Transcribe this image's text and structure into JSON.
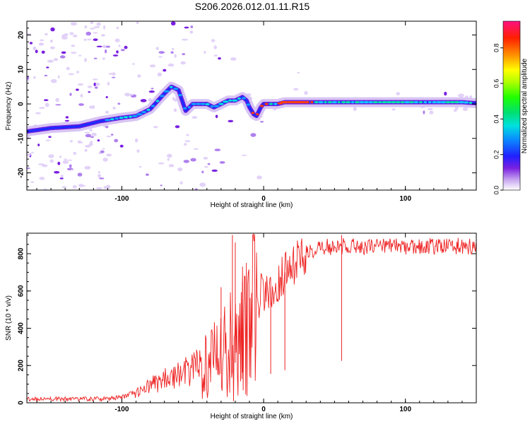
{
  "title": "S206.2026.012.01.11.R15",
  "colors": {
    "signal_trace": "#ee2222",
    "axis": "#000000",
    "background": "#ffffff"
  },
  "chart_data": [
    {
      "type": "heatmap",
      "name": "spectrogram",
      "xlabel": "Height of straight line (km)",
      "ylabel": "Frequency (Hz)",
      "xlim": [
        -167,
        150
      ],
      "ylim": [
        -25,
        24
      ],
      "xticks": [
        -100,
        0,
        100
      ],
      "yticks": [
        -20,
        -10,
        0,
        10,
        20
      ],
      "ridge": {
        "x": [
          -167,
          -150,
          -130,
          -115,
          -100,
          -90,
          -80,
          -70,
          -65,
          -60,
          -55,
          -50,
          -45,
          -40,
          -35,
          -30,
          -25,
          -20,
          -15,
          -12,
          -10,
          -7,
          -5,
          -2,
          0,
          5,
          10,
          15,
          20,
          40,
          60,
          80,
          100,
          120,
          140,
          150
        ],
        "y": [
          -8,
          -7,
          -6.5,
          -5,
          -4,
          -3.5,
          -1.5,
          3,
          5,
          4,
          -2,
          0,
          0,
          0,
          -1,
          0,
          1,
          1,
          2,
          1,
          -1,
          -3,
          -3.5,
          -1,
          0,
          0,
          0,
          0.5,
          0.5,
          0.5,
          0.5,
          0.5,
          0.5,
          0.5,
          0.5,
          0.2
        ]
      },
      "colorbar": {
        "label": "Normalized spectral amplitude",
        "range": [
          0,
          0.95
        ],
        "ticks": [
          "0.0",
          "0.2",
          "0.4",
          "0.6",
          "0.8"
        ],
        "tick_values": [
          0,
          0.2,
          0.4,
          0.6,
          0.8
        ]
      }
    },
    {
      "type": "line",
      "name": "snr",
      "xlabel": "Height of straight line (km)",
      "ylabel": "SNR (10 * v/v)",
      "xlim": [
        -167,
        150
      ],
      "ylim": [
        0,
        910
      ],
      "xticks": [
        -100,
        0,
        100
      ],
      "yticks": [
        0,
        200,
        400,
        600,
        800
      ],
      "envelope": {
        "x": [
          -167,
          -130,
          -110,
          -100,
          -90,
          -80,
          -70,
          -60,
          -50,
          -40,
          -35,
          -30,
          -25,
          -20,
          -15,
          -10,
          -5,
          0,
          5,
          10,
          15,
          20,
          25,
          30,
          40,
          50,
          60,
          80,
          100,
          120,
          140,
          150
        ],
        "y": [
          20,
          20,
          22,
          30,
          50,
          90,
          130,
          160,
          180,
          240,
          280,
          300,
          330,
          380,
          440,
          520,
          560,
          600,
          620,
          650,
          700,
          740,
          780,
          810,
          830,
          840,
          840,
          840,
          840,
          840,
          840,
          840
        ]
      },
      "spikes": [
        {
          "x": -30,
          "y": 620
        },
        {
          "x": -22,
          "y": 900
        },
        {
          "x": -20,
          "y": 860
        },
        {
          "x": -15,
          "y": 650
        },
        {
          "x": 5,
          "y": 620
        },
        {
          "x": 15,
          "y": 700
        },
        {
          "x": 55,
          "y": 900
        }
      ]
    }
  ]
}
